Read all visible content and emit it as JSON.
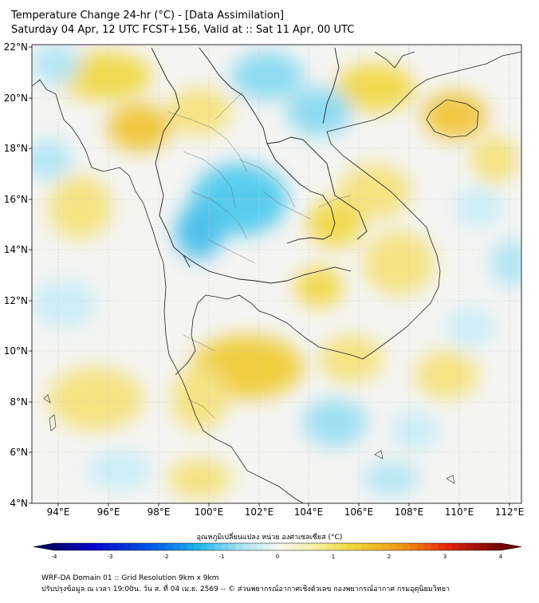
{
  "title_line1": "Temperature Change 24-hr (°C) - [Data Assimilation]",
  "title_line2": "Saturday 04 Apr, 12 UTC FCST+156, Valid at :: Sat 11 Apr, 00 UTC",
  "lat_labels": [
    "22°N",
    "20°N",
    "18°N",
    "16°N",
    "14°N",
    "12°N",
    "10°N",
    "8°N",
    "6°N",
    "4°N"
  ],
  "lon_labels": [
    "94°E",
    "96°E",
    "98°E",
    "100°E",
    "102°E",
    "104°E",
    "106°E",
    "108°E",
    "110°E",
    "112°E"
  ],
  "colorbar": {
    "title": "อุณหภูมิเปลี่ยนแปลง หน่วย องศาเซลเซียส (°C)",
    "tick_labels": [
      "-4",
      "-3",
      "-2",
      "-1",
      "0",
      "1",
      "2",
      "3",
      "4"
    ],
    "range": [
      -4,
      4
    ]
  },
  "footer_line1": "WRF-DA Domain 01 :: Grid Resolution 9km x 9km",
  "footer_line2": "ปรับปรุงข้อมูล ณ เวลา 19:00น. วัน ส. ที่ 04 เม.ย. 2569 -- © ส่วนพยากรณ์อากาศเชิงตัวเลข กองพยากรณ์อากาศ กรมอุตุนิยมวิทยา",
  "colors": {
    "cold": "#3ec6ee",
    "warm": "#f2d530",
    "neutral": "#f4f4f2"
  }
}
